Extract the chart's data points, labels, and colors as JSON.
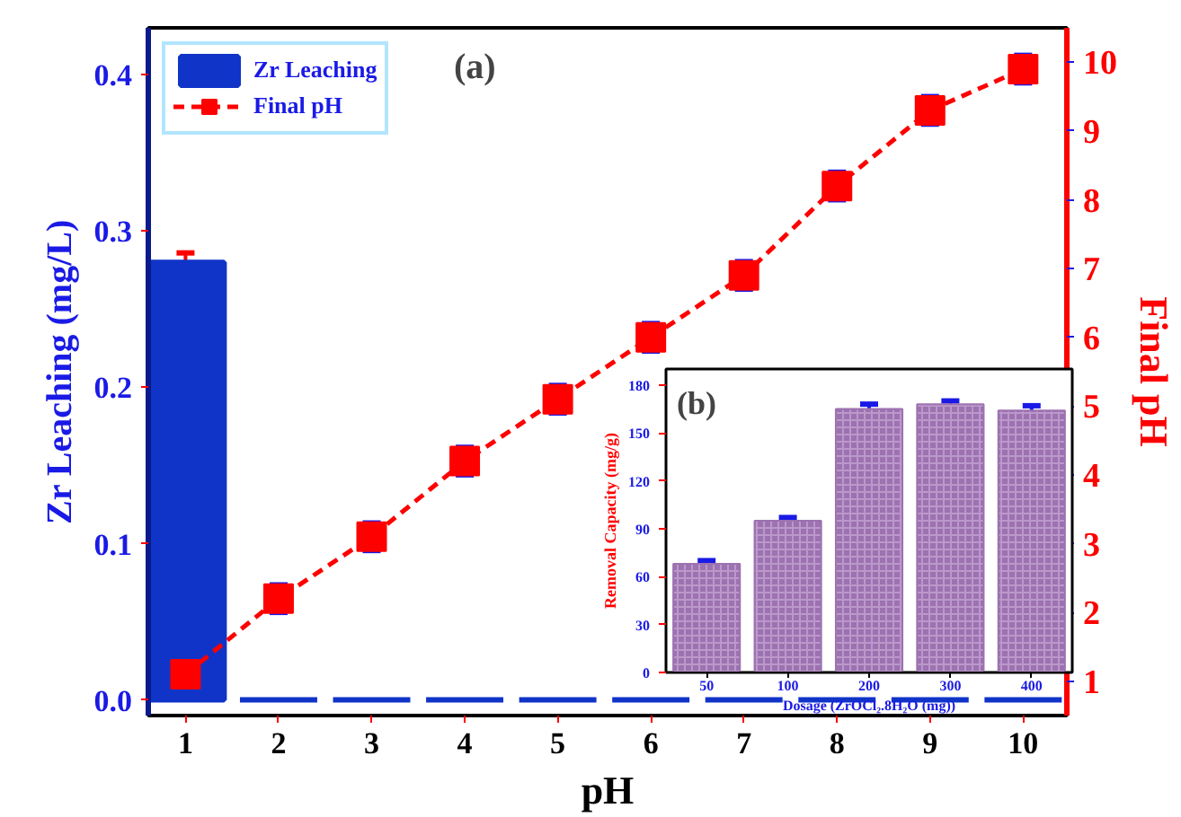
{
  "chart_data": [
    {
      "type": "bar",
      "xlabel": "pH",
      "ylabel": "Zr Leaching (mg/L)",
      "y2label": "Final pH",
      "categories": [
        "1",
        "2",
        "3",
        "4",
        "5",
        "6",
        "7",
        "8",
        "9",
        "10"
      ],
      "series": [
        {
          "name": "Zr Leaching",
          "type": "bar",
          "color": "#1034c8",
          "values": [
            0.28,
            0,
            0,
            0,
            0,
            0,
            0,
            0,
            0,
            0
          ],
          "errors": [
            0.006,
            null,
            null,
            null,
            null,
            null,
            null,
            null,
            null,
            null
          ]
        },
        {
          "name": "Final pH",
          "type": "line",
          "axis": "y2",
          "color": "#ff0000",
          "marker": "square",
          "line_style": "dashed",
          "values": [
            1.1,
            2.2,
            3.1,
            4.2,
            5.1,
            6.0,
            6.9,
            8.2,
            9.3,
            9.9
          ],
          "errors": [
            0.2,
            0.2,
            0.2,
            0.2,
            0.2,
            0.2,
            0.2,
            0.2,
            0.2,
            0.2
          ]
        }
      ],
      "ylim": [
        -0.01,
        0.43
      ],
      "yticks": [
        {
          "value": 0,
          "label": "0.0"
        },
        0.1,
        0.2,
        0.3,
        0.4
      ],
      "y2lim": [
        0.5,
        10.5
      ],
      "y2ticks": [
        1,
        2,
        3,
        4,
        5,
        6,
        7,
        8,
        9,
        10
      ],
      "legend": "top left",
      "grid": false,
      "annotations": [
        "(a)"
      ]
    },
    {
      "type": "bar",
      "xlabel": "Dosage (ZrOCl₂.8H₂O (mg))",
      "ylabel": "Removal Capacity (mg/g)",
      "categories": [
        "50",
        "100",
        "200",
        "300",
        "400"
      ],
      "values": [
        68,
        95,
        165,
        168,
        164
      ],
      "errors": [
        2,
        2,
        3,
        2,
        3
      ],
      "color": "#9c72b0",
      "ylim": [
        0,
        190
      ],
      "yticks": [
        0,
        30,
        60,
        90,
        120,
        150,
        180
      ],
      "grid": false,
      "annotations": [
        "(b)"
      ]
    }
  ]
}
